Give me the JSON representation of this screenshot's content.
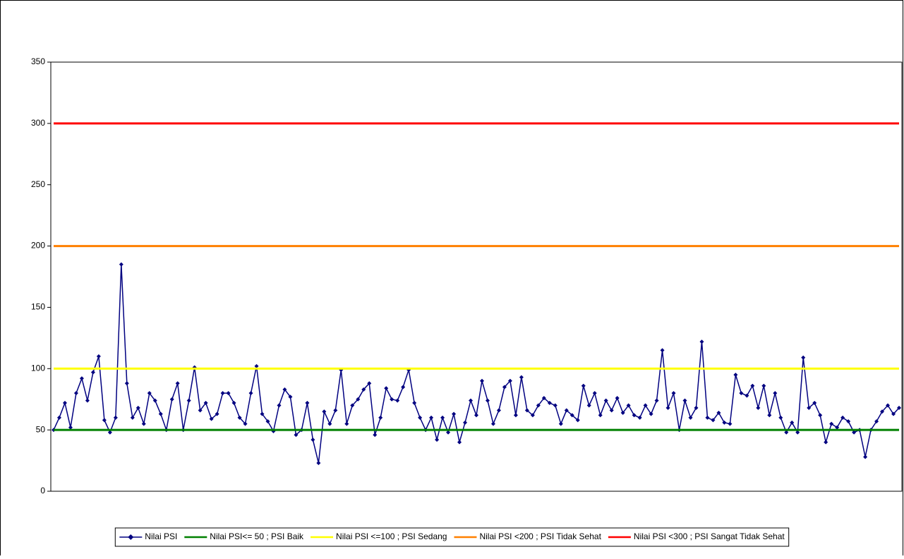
{
  "chart_data": {
    "type": "line",
    "categories": [
      null,
      null,
      null,
      null,
      null,
      null,
      null,
      null,
      null,
      null,
      null,
      null,
      null,
      null,
      null,
      null,
      null,
      null,
      null,
      null,
      null,
      null,
      null,
      null,
      null,
      null,
      null,
      null,
      null,
      null,
      null,
      null,
      null,
      null,
      null,
      null,
      null,
      null,
      null,
      null,
      null,
      null,
      null,
      null,
      null,
      null,
      null,
      null,
      null,
      null,
      null,
      null,
      null,
      null,
      null,
      null,
      null,
      null,
      null,
      null,
      null,
      null,
      null,
      null,
      null,
      null,
      null,
      null,
      null,
      null,
      null,
      null,
      null,
      null,
      null,
      null,
      null,
      null,
      null,
      null,
      null,
      null,
      null,
      null,
      null,
      null,
      null,
      null,
      null,
      null,
      null,
      null,
      null,
      null,
      null,
      null,
      null,
      null,
      null,
      null,
      null,
      null,
      null,
      null,
      null,
      null,
      null,
      null,
      null,
      null,
      null,
      null,
      null,
      null,
      null,
      null,
      null,
      null,
      null,
      null,
      null,
      null,
      null,
      null,
      null,
      null,
      null,
      null,
      null,
      null,
      null,
      null,
      null,
      null,
      null,
      null,
      null,
      null,
      null,
      null,
      null,
      null,
      null,
      null,
      null,
      null,
      null,
      null,
      null,
      null,
      null
    ],
    "series": [
      {
        "name": "Nilai PSI",
        "color": "#000080",
        "marker": "diamond",
        "values": [
          50,
          60,
          72,
          52,
          80,
          92,
          74,
          97,
          110,
          58,
          48,
          60,
          185,
          88,
          60,
          68,
          55,
          80,
          74,
          63,
          50,
          75,
          88,
          50,
          74,
          101,
          66,
          72,
          59,
          63,
          80,
          80,
          72,
          60,
          55,
          80,
          102,
          63,
          57,
          49,
          70,
          83,
          77,
          46,
          50,
          72,
          42,
          23,
          65,
          55,
          66,
          99,
          55,
          70,
          75,
          83,
          88,
          46,
          60,
          84,
          75,
          74,
          85,
          99,
          72,
          60,
          50,
          60,
          42,
          60,
          48,
          63,
          40,
          56,
          74,
          62,
          90,
          74,
          55,
          66,
          85,
          90,
          62,
          93,
          66,
          62,
          70,
          76,
          72,
          70,
          55,
          66,
          62,
          58,
          86,
          70,
          80,
          62,
          74,
          66,
          76,
          64,
          70,
          62,
          60,
          70,
          63,
          74,
          115,
          68,
          80,
          50,
          74,
          60,
          68,
          122,
          60,
          58,
          64,
          56,
          55,
          95,
          80,
          78,
          86,
          68,
          86,
          62,
          80,
          60,
          48,
          56,
          48,
          109,
          68,
          72,
          62,
          40,
          55,
          52,
          60,
          57,
          48,
          50,
          28,
          50,
          57,
          65,
          70,
          63,
          68
        ]
      },
      {
        "name": "Nilai PSI<= 50 ; PSI Baik",
        "color": "#008000",
        "values": [
          50,
          50,
          50,
          50,
          50,
          50,
          50,
          50,
          50,
          50,
          50,
          50,
          50,
          50,
          50,
          50,
          50,
          50,
          50,
          50,
          50,
          50,
          50,
          50,
          50,
          50,
          50,
          50,
          50,
          50,
          50,
          50,
          50,
          50,
          50,
          50,
          50,
          50,
          50,
          50,
          50,
          50,
          50,
          50,
          50,
          50,
          50,
          50,
          50,
          50,
          50,
          50,
          50,
          50,
          50,
          50,
          50,
          50,
          50,
          50,
          50,
          50,
          50,
          50,
          50,
          50,
          50,
          50,
          50,
          50,
          50,
          50,
          50,
          50,
          50,
          50,
          50,
          50,
          50,
          50,
          50,
          50,
          50,
          50,
          50,
          50,
          50,
          50,
          50,
          50,
          50,
          50,
          50,
          50,
          50,
          50,
          50,
          50,
          50,
          50,
          50,
          50,
          50,
          50,
          50,
          50,
          50,
          50,
          50,
          50,
          50,
          50,
          50,
          50,
          50,
          50,
          50,
          50,
          50,
          50,
          50,
          50,
          50,
          50,
          50,
          50,
          50,
          50,
          50,
          50,
          50,
          50,
          50,
          50,
          50,
          50,
          50,
          50,
          50,
          50,
          50,
          50,
          50,
          50,
          50,
          50,
          50,
          50,
          50,
          50,
          50
        ]
      },
      {
        "name": "Nilai PSI <=100 ; PSI Sedang",
        "color": "#ffff00",
        "values": [
          100,
          100,
          100,
          100,
          100,
          100,
          100,
          100,
          100,
          100,
          100,
          100,
          100,
          100,
          100,
          100,
          100,
          100,
          100,
          100,
          100,
          100,
          100,
          100,
          100,
          100,
          100,
          100,
          100,
          100,
          100,
          100,
          100,
          100,
          100,
          100,
          100,
          100,
          100,
          100,
          100,
          100,
          100,
          100,
          100,
          100,
          100,
          100,
          100,
          100,
          100,
          100,
          100,
          100,
          100,
          100,
          100,
          100,
          100,
          100,
          100,
          100,
          100,
          100,
          100,
          100,
          100,
          100,
          100,
          100,
          100,
          100,
          100,
          100,
          100,
          100,
          100,
          100,
          100,
          100,
          100,
          100,
          100,
          100,
          100,
          100,
          100,
          100,
          100,
          100,
          100,
          100,
          100,
          100,
          100,
          100,
          100,
          100,
          100,
          100,
          100,
          100,
          100,
          100,
          100,
          100,
          100,
          100,
          100,
          100,
          100,
          100,
          100,
          100,
          100,
          100,
          100,
          100,
          100,
          100,
          100,
          100,
          100,
          100,
          100,
          100,
          100,
          100,
          100,
          100,
          100,
          100,
          100,
          100,
          100,
          100,
          100,
          100,
          100,
          100,
          100,
          100,
          100,
          100,
          100,
          100,
          100,
          100,
          100,
          100,
          100
        ]
      },
      {
        "name": "Nilai PSI <200 ; PSI Tidak Sehat",
        "color": "#ff8000",
        "values": [
          200,
          200,
          200,
          200,
          200,
          200,
          200,
          200,
          200,
          200,
          200,
          200,
          200,
          200,
          200,
          200,
          200,
          200,
          200,
          200,
          200,
          200,
          200,
          200,
          200,
          200,
          200,
          200,
          200,
          200,
          200,
          200,
          200,
          200,
          200,
          200,
          200,
          200,
          200,
          200,
          200,
          200,
          200,
          200,
          200,
          200,
          200,
          200,
          200,
          200,
          200,
          200,
          200,
          200,
          200,
          200,
          200,
          200,
          200,
          200,
          200,
          200,
          200,
          200,
          200,
          200,
          200,
          200,
          200,
          200,
          200,
          200,
          200,
          200,
          200,
          200,
          200,
          200,
          200,
          200,
          200,
          200,
          200,
          200,
          200,
          200,
          200,
          200,
          200,
          200,
          200,
          200,
          200,
          200,
          200,
          200,
          200,
          200,
          200,
          200,
          200,
          200,
          200,
          200,
          200,
          200,
          200,
          200,
          200,
          200,
          200,
          200,
          200,
          200,
          200,
          200,
          200,
          200,
          200,
          200,
          200,
          200,
          200,
          200,
          200,
          200,
          200,
          200,
          200,
          200,
          200,
          200,
          200,
          200,
          200,
          200,
          200,
          200,
          200,
          200,
          200,
          200,
          200,
          200,
          200,
          200,
          200,
          200,
          200,
          200,
          200
        ]
      },
      {
        "name": "Nilai PSI <300 ; PSI Sangat Tidak Sehat",
        "color": "#ff0000",
        "values": [
          300,
          300,
          300,
          300,
          300,
          300,
          300,
          300,
          300,
          300,
          300,
          300,
          300,
          300,
          300,
          300,
          300,
          300,
          300,
          300,
          300,
          300,
          300,
          300,
          300,
          300,
          300,
          300,
          300,
          300,
          300,
          300,
          300,
          300,
          300,
          300,
          300,
          300,
          300,
          300,
          300,
          300,
          300,
          300,
          300,
          300,
          300,
          300,
          300,
          300,
          300,
          300,
          300,
          300,
          300,
          300,
          300,
          300,
          300,
          300,
          300,
          300,
          300,
          300,
          300,
          300,
          300,
          300,
          300,
          300,
          300,
          300,
          300,
          300,
          300,
          300,
          300,
          300,
          300,
          300,
          300,
          300,
          300,
          300,
          300,
          300,
          300,
          300,
          300,
          300,
          300,
          300,
          300,
          300,
          300,
          300,
          300,
          300,
          300,
          300,
          300,
          300,
          300,
          300,
          300,
          300,
          300,
          300,
          300,
          300,
          300,
          300,
          300,
          300,
          300,
          300,
          300,
          300,
          300,
          300,
          300,
          300,
          300,
          300,
          300,
          300,
          300,
          300,
          300,
          300,
          300,
          300,
          300,
          300,
          300,
          300,
          300,
          300,
          300,
          300,
          300,
          300,
          300,
          300,
          300,
          300,
          300,
          300,
          300,
          300,
          300
        ]
      }
    ],
    "ylim": [
      0,
      350
    ],
    "yticks": [
      0,
      50,
      100,
      150,
      200,
      250,
      300,
      350
    ],
    "grid": false,
    "legend": "bottom"
  }
}
